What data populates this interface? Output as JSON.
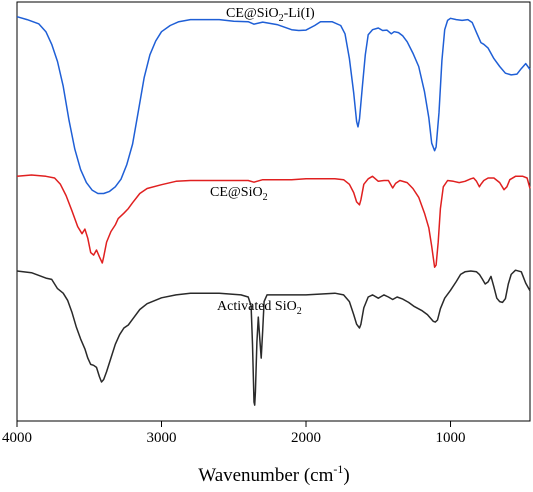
{
  "chart_data": {
    "type": "line",
    "title": "",
    "xlabel_main": "Wavenumber (cm",
    "xlabel_sup": "-1",
    "xlabel_end": ")",
    "ylabel": "",
    "xlim": [
      4000,
      450
    ],
    "x_reversed": true,
    "ylim": [
      0,
      100
    ],
    "grid": false,
    "legend": "none",
    "x_ticks": [
      {
        "value": 4000,
        "label": "4000"
      },
      {
        "value": 3000,
        "label": "3000"
      },
      {
        "value": 2000,
        "label": "2000"
      },
      {
        "value": 1000,
        "label": "1000"
      }
    ],
    "series": [
      {
        "name_main": "CE@SiO",
        "name_sub": "2",
        "name_end": "-Li(I)",
        "color": "#1f5fd6",
        "points": [
          [
            4000,
            96.5
          ],
          [
            3930,
            95.8
          ],
          [
            3850,
            94.8
          ],
          [
            3800,
            92.9
          ],
          [
            3760,
            89.9
          ],
          [
            3720,
            85.8
          ],
          [
            3680,
            79.9
          ],
          [
            3640,
            71.8
          ],
          [
            3600,
            64.9
          ],
          [
            3560,
            60.0
          ],
          [
            3520,
            56.9
          ],
          [
            3480,
            55.1
          ],
          [
            3440,
            54.3
          ],
          [
            3400,
            54.3
          ],
          [
            3360,
            54.8
          ],
          [
            3320,
            55.9
          ],
          [
            3280,
            57.7
          ],
          [
            3240,
            61.2
          ],
          [
            3200,
            66.1
          ],
          [
            3160,
            74.0
          ],
          [
            3120,
            82.0
          ],
          [
            3080,
            87.4
          ],
          [
            3040,
            90.7
          ],
          [
            3000,
            92.9
          ],
          [
            2940,
            94.4
          ],
          [
            2880,
            95.3
          ],
          [
            2800,
            95.8
          ],
          [
            2700,
            95.8
          ],
          [
            2600,
            95.8
          ],
          [
            2500,
            95.4
          ],
          [
            2400,
            95.3
          ],
          [
            2360,
            94.7
          ],
          [
            2300,
            95.2
          ],
          [
            2200,
            94.6
          ],
          [
            2100,
            93.4
          ],
          [
            2050,
            93.2
          ],
          [
            2000,
            93.3
          ],
          [
            1940,
            94.4
          ],
          [
            1900,
            95.3
          ],
          [
            1820,
            95.3
          ],
          [
            1760,
            94.4
          ],
          [
            1730,
            92.4
          ],
          [
            1700,
            86.5
          ],
          [
            1670,
            78.3
          ],
          [
            1650,
            71.5
          ],
          [
            1640,
            70.2
          ],
          [
            1630,
            72.1
          ],
          [
            1610,
            79.9
          ],
          [
            1590,
            87.4
          ],
          [
            1570,
            92.2
          ],
          [
            1540,
            93.4
          ],
          [
            1500,
            93.8
          ],
          [
            1470,
            93.2
          ],
          [
            1440,
            93.3
          ],
          [
            1410,
            92.4
          ],
          [
            1390,
            92.9
          ],
          [
            1360,
            92.7
          ],
          [
            1330,
            91.9
          ],
          [
            1300,
            90.5
          ],
          [
            1260,
            87.8
          ],
          [
            1220,
            84.6
          ],
          [
            1180,
            78.6
          ],
          [
            1150,
            72.4
          ],
          [
            1130,
            66.3
          ],
          [
            1110,
            64.5
          ],
          [
            1100,
            65.4
          ],
          [
            1080,
            73.6
          ],
          [
            1060,
            86.0
          ],
          [
            1040,
            93.4
          ],
          [
            1020,
            95.6
          ],
          [
            1000,
            96.1
          ],
          [
            960,
            95.8
          ],
          [
            920,
            95.6
          ],
          [
            880,
            95.8
          ],
          [
            850,
            95.1
          ],
          [
            820,
            92.7
          ],
          [
            790,
            90.3
          ],
          [
            770,
            89.9
          ],
          [
            740,
            89.0
          ],
          [
            700,
            86.5
          ],
          [
            660,
            84.6
          ],
          [
            620,
            83.0
          ],
          [
            580,
            82.6
          ],
          [
            540,
            82.8
          ],
          [
            510,
            84.1
          ],
          [
            480,
            85.3
          ],
          [
            450,
            83.9
          ]
        ]
      },
      {
        "name_main": "CE@SiO",
        "name_sub": "2",
        "name_end": "",
        "color": "#e02020",
        "points": [
          [
            4000,
            58.4
          ],
          [
            3900,
            58.7
          ],
          [
            3800,
            58.4
          ],
          [
            3740,
            58.0
          ],
          [
            3700,
            56.5
          ],
          [
            3660,
            53.8
          ],
          [
            3620,
            50.2
          ],
          [
            3580,
            46.4
          ],
          [
            3550,
            44.7
          ],
          [
            3530,
            45.8
          ],
          [
            3510,
            43.6
          ],
          [
            3490,
            40.2
          ],
          [
            3470,
            39.6
          ],
          [
            3450,
            40.8
          ],
          [
            3430,
            39.2
          ],
          [
            3410,
            37.7
          ],
          [
            3400,
            39.2
          ],
          [
            3380,
            42.7
          ],
          [
            3350,
            45.2
          ],
          [
            3320,
            46.8
          ],
          [
            3300,
            48.3
          ],
          [
            3260,
            49.6
          ],
          [
            3230,
            50.7
          ],
          [
            3200,
            52.1
          ],
          [
            3150,
            54.3
          ],
          [
            3100,
            55.5
          ],
          [
            3000,
            56.4
          ],
          [
            2900,
            57.2
          ],
          [
            2800,
            57.4
          ],
          [
            2600,
            57.4
          ],
          [
            2400,
            57.4
          ],
          [
            2360,
            57.0
          ],
          [
            2300,
            57.6
          ],
          [
            2100,
            57.6
          ],
          [
            2000,
            57.8
          ],
          [
            1800,
            57.8
          ],
          [
            1740,
            57.6
          ],
          [
            1700,
            56.5
          ],
          [
            1670,
            54.5
          ],
          [
            1650,
            52.3
          ],
          [
            1630,
            51.6
          ],
          [
            1620,
            52.8
          ],
          [
            1600,
            56.5
          ],
          [
            1570,
            57.8
          ],
          [
            1540,
            58.4
          ],
          [
            1500,
            57.2
          ],
          [
            1460,
            57.4
          ],
          [
            1430,
            57.4
          ],
          [
            1400,
            55.6
          ],
          [
            1380,
            56.7
          ],
          [
            1350,
            57.4
          ],
          [
            1300,
            56.9
          ],
          [
            1260,
            55.5
          ],
          [
            1220,
            53.4
          ],
          [
            1180,
            49.6
          ],
          [
            1150,
            46.1
          ],
          [
            1130,
            41.7
          ],
          [
            1110,
            36.7
          ],
          [
            1100,
            37.2
          ],
          [
            1085,
            42.7
          ],
          [
            1070,
            50.7
          ],
          [
            1050,
            55.9
          ],
          [
            1020,
            57.4
          ],
          [
            980,
            57.2
          ],
          [
            940,
            56.9
          ],
          [
            900,
            57.2
          ],
          [
            860,
            57.8
          ],
          [
            840,
            58.0
          ],
          [
            820,
            57.2
          ],
          [
            800,
            55.9
          ],
          [
            790,
            56.5
          ],
          [
            770,
            57.4
          ],
          [
            740,
            58.0
          ],
          [
            700,
            58.0
          ],
          [
            660,
            56.9
          ],
          [
            630,
            55.2
          ],
          [
            610,
            55.9
          ],
          [
            590,
            57.6
          ],
          [
            550,
            58.4
          ],
          [
            500,
            58.4
          ],
          [
            470,
            58.0
          ],
          [
            450,
            55.5
          ]
        ]
      },
      {
        "name_main": "Activated SiO",
        "name_sub": "2",
        "name_end": "",
        "color": "#2a2a2a",
        "points": [
          [
            4000,
            35.8
          ],
          [
            3900,
            35.4
          ],
          [
            3800,
            34.1
          ],
          [
            3760,
            33.8
          ],
          [
            3720,
            31.6
          ],
          [
            3680,
            30.5
          ],
          [
            3650,
            28.8
          ],
          [
            3620,
            26.0
          ],
          [
            3590,
            22.5
          ],
          [
            3560,
            19.6
          ],
          [
            3530,
            17.2
          ],
          [
            3510,
            15.0
          ],
          [
            3490,
            13.5
          ],
          [
            3470,
            13.3
          ],
          [
            3450,
            12.8
          ],
          [
            3430,
            10.6
          ],
          [
            3415,
            9.3
          ],
          [
            3400,
            9.9
          ],
          [
            3380,
            11.8
          ],
          [
            3350,
            15.0
          ],
          [
            3320,
            18.3
          ],
          [
            3290,
            20.6
          ],
          [
            3260,
            22.2
          ],
          [
            3230,
            22.9
          ],
          [
            3200,
            24.3
          ],
          [
            3150,
            26.6
          ],
          [
            3100,
            28.0
          ],
          [
            3000,
            29.4
          ],
          [
            2900,
            30.1
          ],
          [
            2800,
            30.5
          ],
          [
            2600,
            30.5
          ],
          [
            2450,
            30.1
          ],
          [
            2400,
            29.6
          ],
          [
            2380,
            27.5
          ],
          [
            2370,
            18.3
          ],
          [
            2360,
            4.5
          ],
          [
            2355,
            3.8
          ],
          [
            2350,
            6.9
          ],
          [
            2340,
            18.8
          ],
          [
            2330,
            24.8
          ],
          [
            2320,
            19.6
          ],
          [
            2310,
            15.0
          ],
          [
            2300,
            21.6
          ],
          [
            2290,
            28.5
          ],
          [
            2270,
            30.1
          ],
          [
            2200,
            30.1
          ],
          [
            2000,
            30.1
          ],
          [
            1800,
            30.5
          ],
          [
            1740,
            30.1
          ],
          [
            1700,
            28.5
          ],
          [
            1670,
            25.4
          ],
          [
            1650,
            23.1
          ],
          [
            1630,
            22.2
          ],
          [
            1620,
            23.1
          ],
          [
            1600,
            27.0
          ],
          [
            1570,
            29.6
          ],
          [
            1540,
            30.1
          ],
          [
            1500,
            29.3
          ],
          [
            1460,
            30.1
          ],
          [
            1430,
            29.6
          ],
          [
            1400,
            29.0
          ],
          [
            1370,
            29.6
          ],
          [
            1330,
            29.1
          ],
          [
            1290,
            28.3
          ],
          [
            1250,
            27.3
          ],
          [
            1200,
            26.4
          ],
          [
            1160,
            25.4
          ],
          [
            1120,
            23.8
          ],
          [
            1105,
            23.6
          ],
          [
            1090,
            24.1
          ],
          [
            1070,
            26.8
          ],
          [
            1040,
            29.3
          ],
          [
            1000,
            31.2
          ],
          [
            960,
            33.3
          ],
          [
            930,
            35.0
          ],
          [
            900,
            35.6
          ],
          [
            860,
            35.8
          ],
          [
            820,
            35.6
          ],
          [
            800,
            35.0
          ],
          [
            780,
            33.9
          ],
          [
            760,
            32.7
          ],
          [
            740,
            33.2
          ],
          [
            720,
            34.5
          ],
          [
            700,
            32.0
          ],
          [
            680,
            29.3
          ],
          [
            660,
            28.5
          ],
          [
            640,
            28.3
          ],
          [
            620,
            29.2
          ],
          [
            600,
            32.7
          ],
          [
            580,
            35.0
          ],
          [
            550,
            36.0
          ],
          [
            510,
            35.6
          ],
          [
            480,
            32.9
          ],
          [
            450,
            31.1
          ]
        ]
      }
    ]
  }
}
